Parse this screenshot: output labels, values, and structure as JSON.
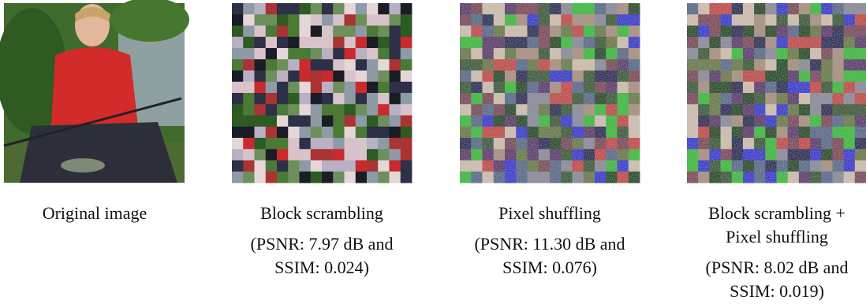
{
  "panels": [
    {
      "caption": [
        "Original image"
      ]
    },
    {
      "caption": [
        "Block scrambling"
      ],
      "metrics": [
        "(PSNR: 7.97 dB and",
        "SSIM: 0.024)"
      ]
    },
    {
      "caption": [
        "Pixel shuffling"
      ],
      "metrics": [
        "(PSNR: 11.30 dB and",
        "SSIM: 0.076)"
      ]
    },
    {
      "caption": [
        "Block scrambling +",
        "Pixel shuffling"
      ],
      "metrics": [
        "(PSNR: 8.02 dB and",
        "SSIM: 0.019)"
      ]
    }
  ]
}
